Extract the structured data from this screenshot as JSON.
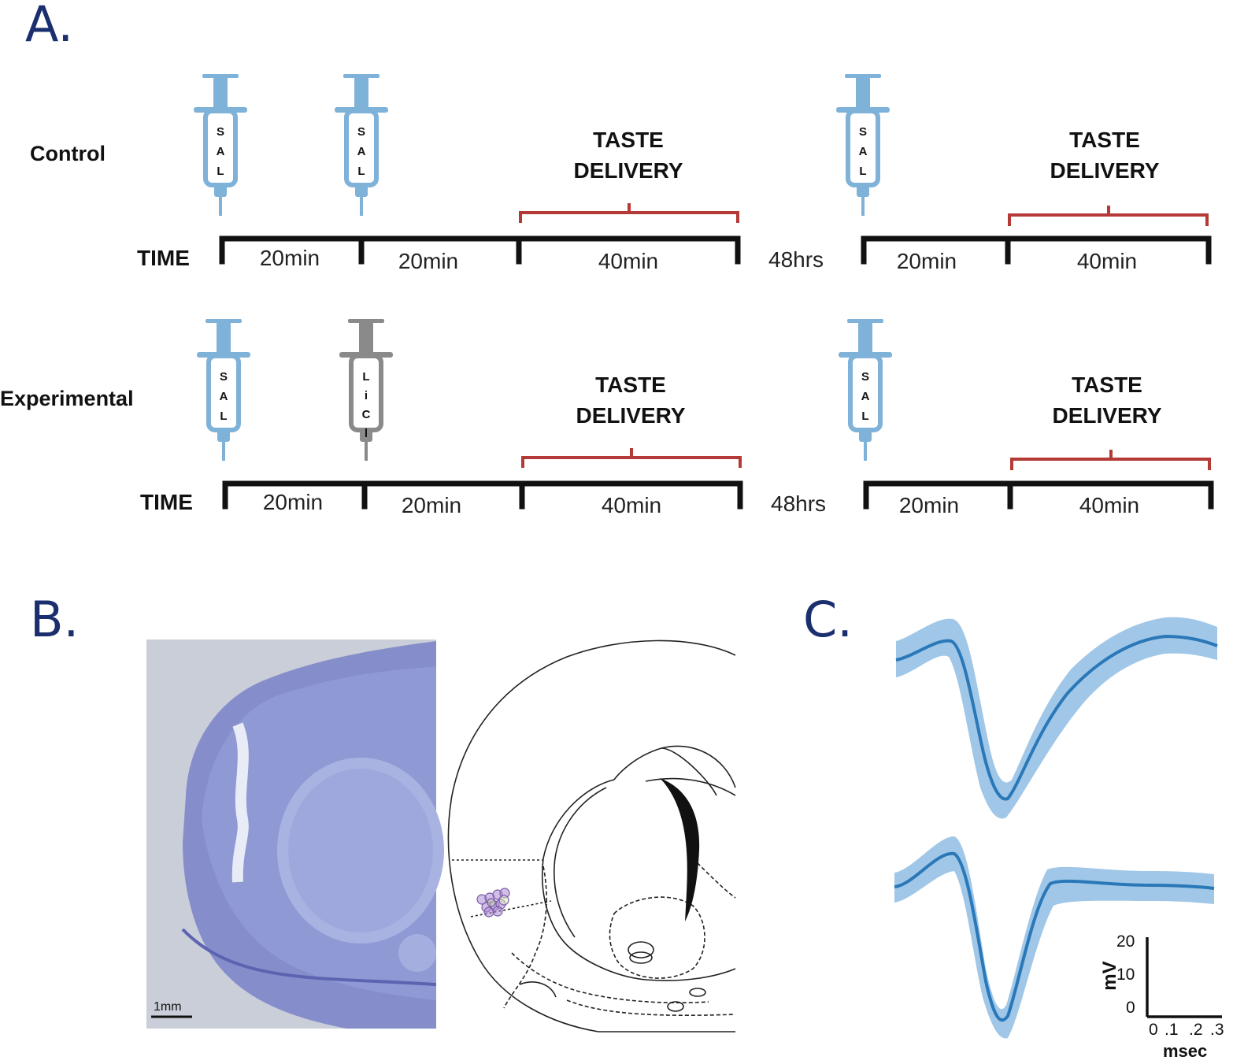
{
  "panels": {
    "a": "A.",
    "b": "B.",
    "c": "C."
  },
  "panel_a": {
    "rows": [
      {
        "label": "Control",
        "time_label": "TIME",
        "segments_day1": [
          "20min",
          "20min",
          "40min"
        ],
        "gap": "48hrs",
        "segments_day2": [
          "20min",
          "40min"
        ],
        "taste_line1": "TASTE",
        "taste_line2": "DELIVERY",
        "syringes": [
          {
            "letters": [
              "S",
              "A",
              "L"
            ],
            "color": "#7fb2d8",
            "drug": "saline"
          },
          {
            "letters": [
              "S",
              "A",
              "L"
            ],
            "color": "#7fb2d8",
            "drug": "saline"
          },
          {
            "letters": [
              "S",
              "A",
              "L"
            ],
            "color": "#7fb2d8",
            "drug": "saline"
          }
        ]
      },
      {
        "label": "Experimental",
        "time_label": "TIME",
        "segments_day1": [
          "20min",
          "20min",
          "40min"
        ],
        "gap": "48hrs",
        "segments_day2": [
          "20min",
          "40min"
        ],
        "taste_line1": "TASTE",
        "taste_line2": "DELIVERY",
        "syringes": [
          {
            "letters": [
              "S",
              "A",
              "L"
            ],
            "color": "#7fb2d8",
            "drug": "saline"
          },
          {
            "letters": [
              "L",
              "i",
              "C",
              "l"
            ],
            "color": "#8a8a8a",
            "drug": "LiCl"
          },
          {
            "letters": [
              "S",
              "A",
              "L"
            ],
            "color": "#7fb2d8",
            "drug": "saline"
          }
        ]
      }
    ],
    "colors": {
      "timeline": "#111111",
      "bracket": "#b33a36",
      "saline": "#7fb2d8",
      "licl": "#8a8a8a"
    }
  },
  "panel_b": {
    "scale_bar": "1mm",
    "histology_color": "#7d87c9",
    "marker_color": "#a98bd1"
  },
  "panel_c": {
    "y_axis_label": "mV",
    "y_ticks": [
      "20",
      "10",
      "0"
    ],
    "x_axis_label": "msec",
    "x_ticks": [
      "0",
      ".1",
      ".2",
      ".3"
    ],
    "waveform_color": "#2a78b8",
    "band_color": "#8fbde3"
  }
}
